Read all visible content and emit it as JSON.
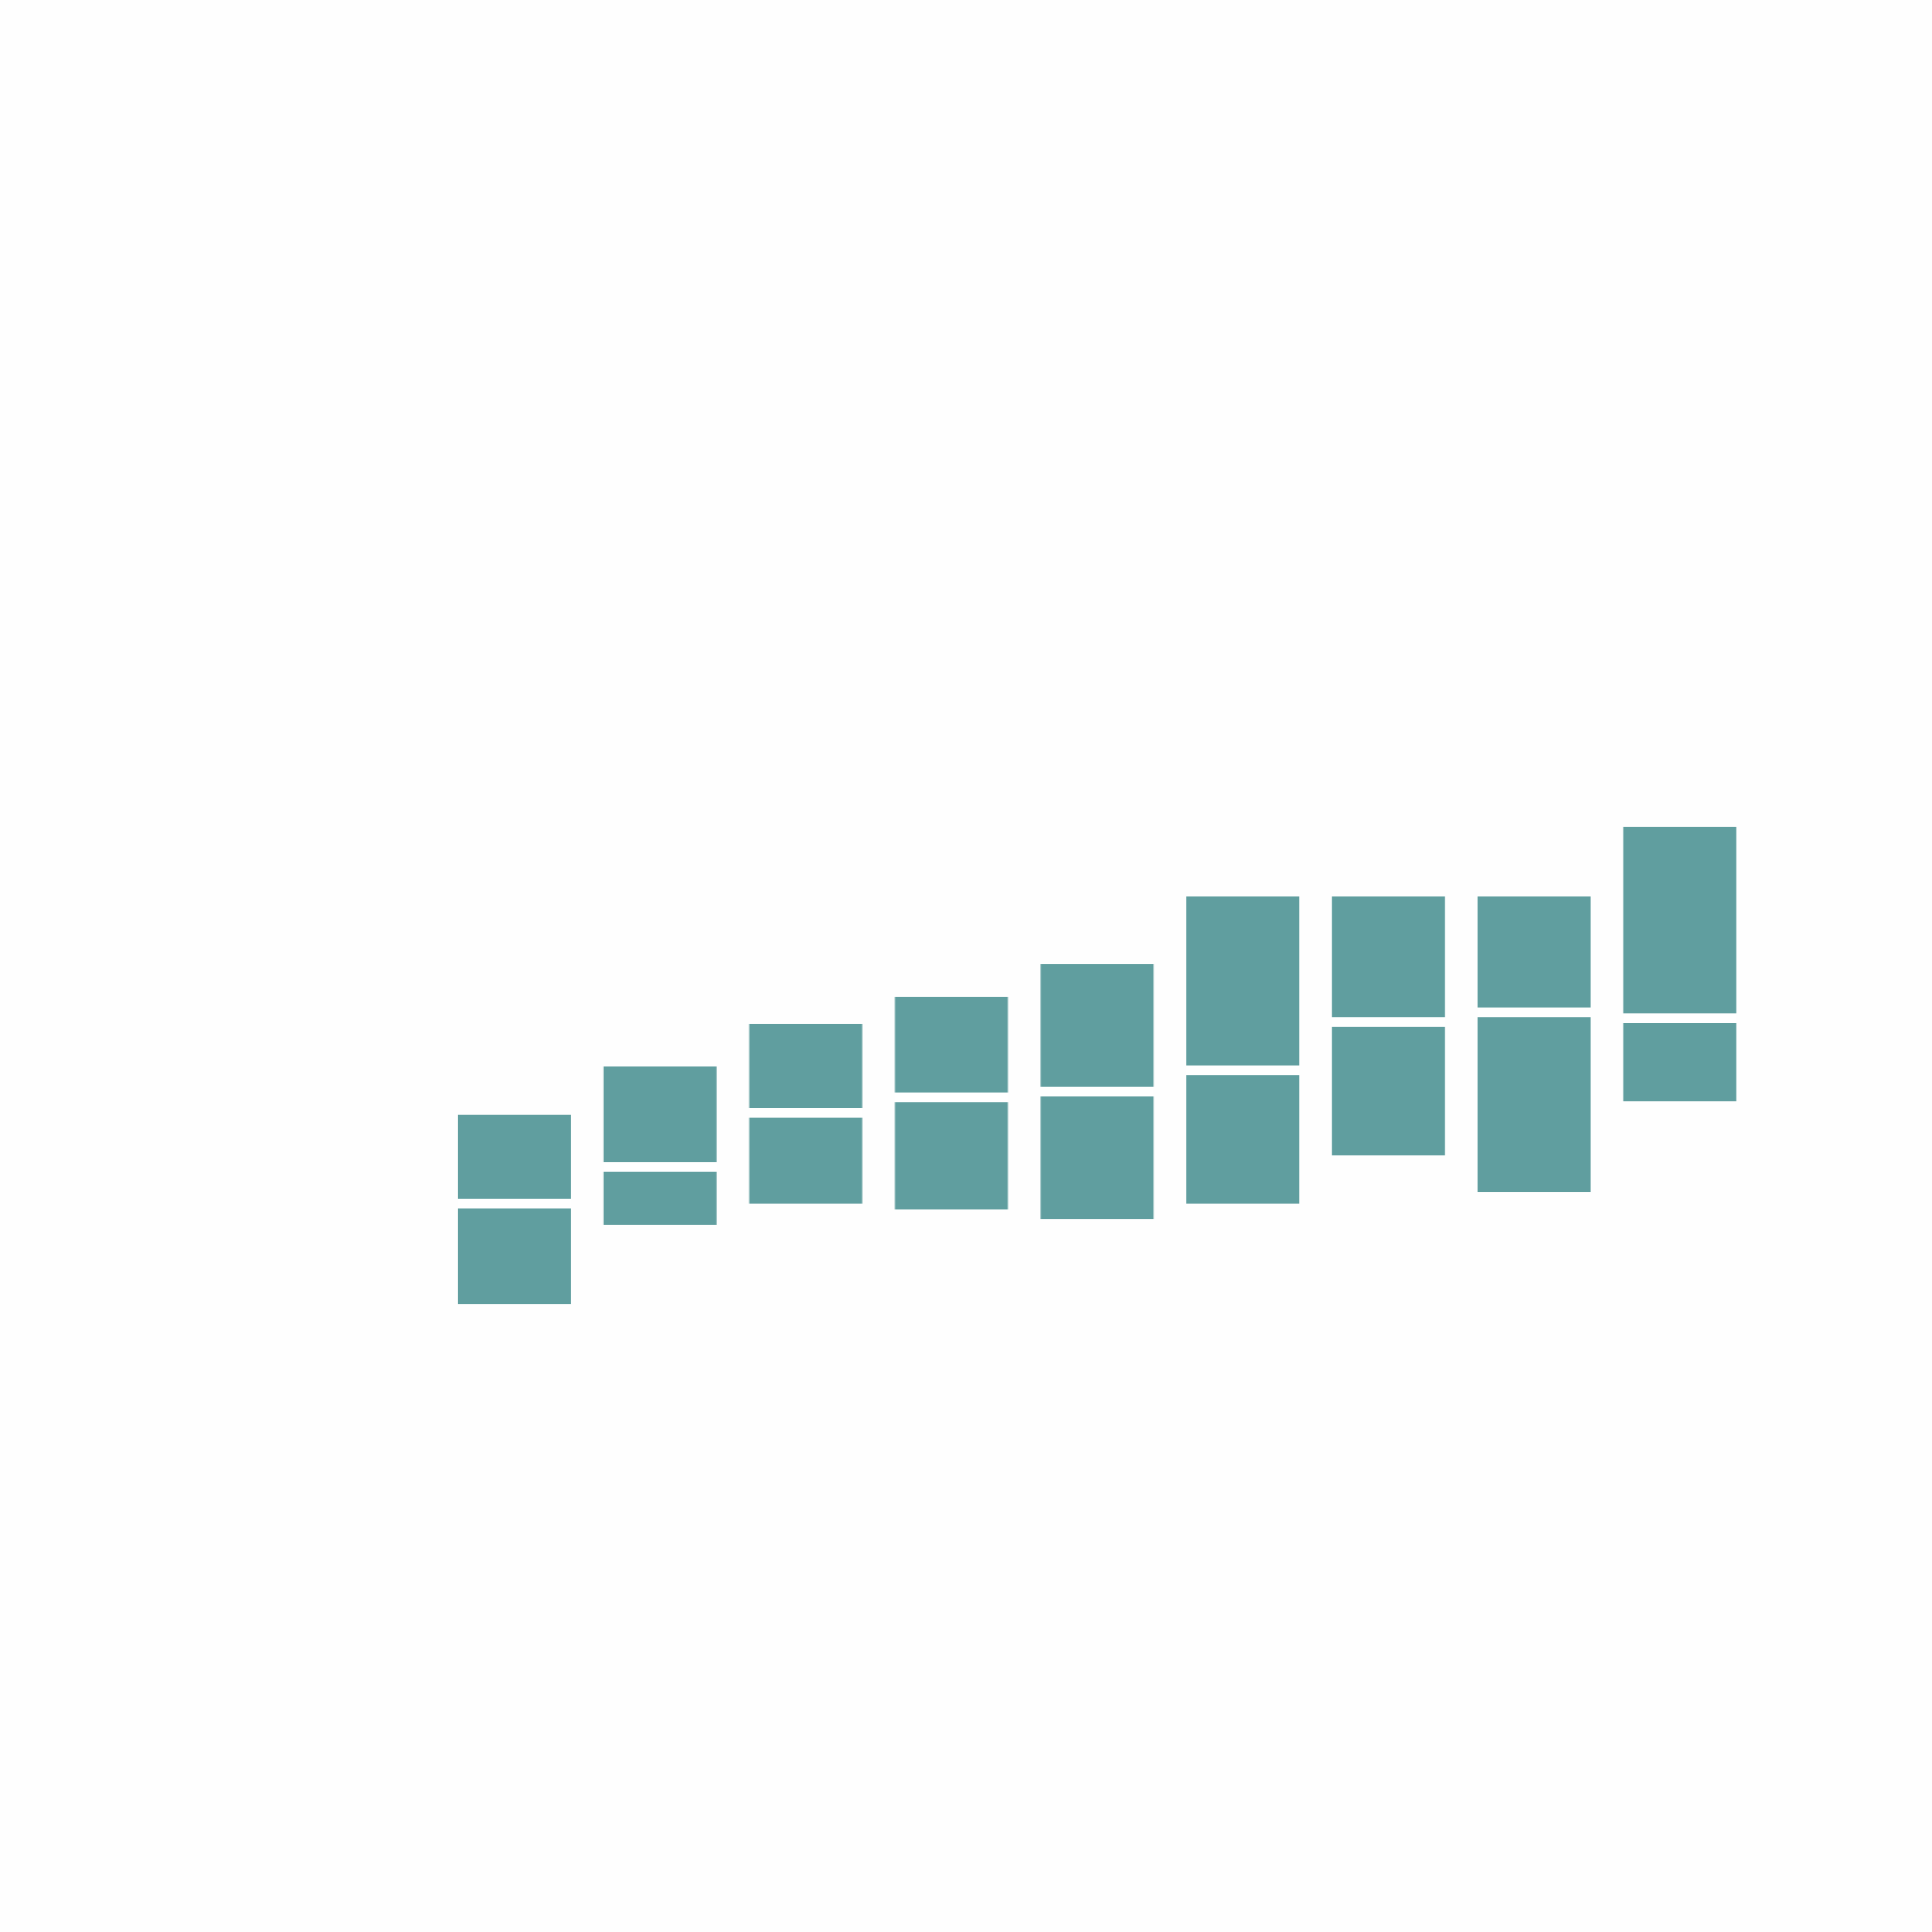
{
  "chart_data": {
    "type": "box",
    "title": "",
    "xlabel": "",
    "ylabel": "",
    "ylim": [
      0,
      100
    ],
    "grid": false,
    "axes_visible": false,
    "box_color": "#609e9f",
    "median_color": "#ffffff",
    "boxes": [
      {
        "q1": 32.5,
        "median": 37.7,
        "q3": 42.3
      },
      {
        "q1": 36.6,
        "median": 39.6,
        "q3": 44.8
      },
      {
        "q1": 37.7,
        "median": 42.4,
        "q3": 47.0
      },
      {
        "q1": 37.4,
        "median": 43.2,
        "q3": 48.4
      },
      {
        "q1": 36.9,
        "median": 43.5,
        "q3": 50.1
      },
      {
        "q1": 37.7,
        "median": 44.6,
        "q3": 53.6
      },
      {
        "q1": 40.2,
        "median": 47.1,
        "q3": 53.6
      },
      {
        "q1": 38.3,
        "median": 47.6,
        "q3": 53.6
      },
      {
        "q1": 43.0,
        "median": 47.3,
        "q3": 57.2
      }
    ]
  }
}
